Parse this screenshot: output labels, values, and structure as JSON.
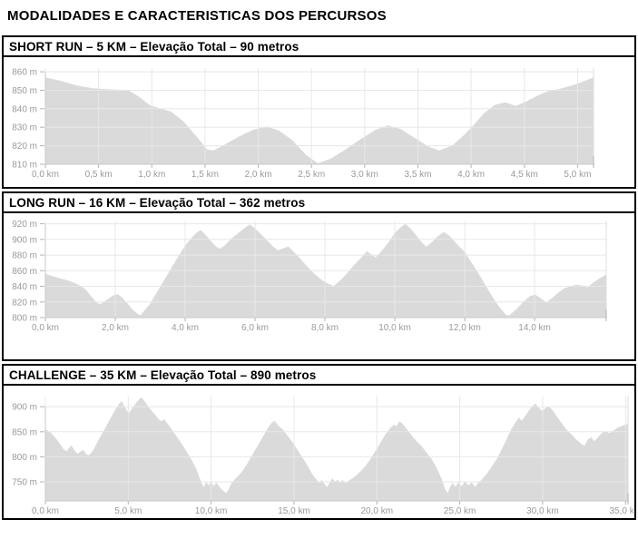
{
  "title": "MODALIDADES E CARACTERISTICAS DOS PERCURSOS",
  "colors": {
    "area_fill": "#dadada",
    "grid_line": "#e8e8e8",
    "end_line": "#dcdcdc",
    "axis_line": "#c9c9c9",
    "tick_mark": "#b5b5b5",
    "axis_text": "#9a9a9a",
    "border": "#000000"
  },
  "chart_data": [
    {
      "type": "area",
      "title": "SHORT RUN – 5 KM – Elevação Total – 90 metros",
      "xlabel": "km",
      "ylabel": "m",
      "xlim": [
        0,
        5.15
      ],
      "ylim": [
        810,
        862
      ],
      "x_ticks": [
        0,
        0.5,
        1,
        1.5,
        2,
        2.5,
        3,
        3.5,
        4,
        4.5,
        5
      ],
      "x_tick_labels": [
        "0,0 km",
        "0,5 km",
        "1,0 km",
        "1,5 km",
        "2,0 km",
        "2,5 km",
        "3,0 km",
        "3,5 km",
        "4,0 km",
        "4,5 km",
        "5,0 km"
      ],
      "y_ticks": [
        860,
        850,
        840,
        830,
        820,
        810
      ],
      "y_tick_labels": [
        "860 m",
        "850 m",
        "840 m",
        "830 m",
        "820 m",
        "810 m"
      ],
      "points": [
        [
          0,
          857
        ],
        [
          0.15,
          855
        ],
        [
          0.3,
          852.5
        ],
        [
          0.45,
          851
        ],
        [
          0.6,
          850.5
        ],
        [
          0.78,
          850
        ],
        [
          0.88,
          846.5
        ],
        [
          0.98,
          842
        ],
        [
          1.08,
          840
        ],
        [
          1.18,
          838.5
        ],
        [
          1.3,
          833
        ],
        [
          1.42,
          825
        ],
        [
          1.52,
          818
        ],
        [
          1.58,
          817.5
        ],
        [
          1.68,
          820.5
        ],
        [
          1.82,
          825
        ],
        [
          1.95,
          828.5
        ],
        [
          2.08,
          830.5
        ],
        [
          2.2,
          828
        ],
        [
          2.32,
          823
        ],
        [
          2.45,
          815
        ],
        [
          2.56,
          810.5
        ],
        [
          2.68,
          813
        ],
        [
          2.82,
          818
        ],
        [
          2.96,
          823.5
        ],
        [
          3.1,
          828.5
        ],
        [
          3.22,
          831
        ],
        [
          3.34,
          829
        ],
        [
          3.46,
          824.5
        ],
        [
          3.6,
          819.5
        ],
        [
          3.7,
          817.5
        ],
        [
          3.82,
          820
        ],
        [
          3.92,
          825
        ],
        [
          4.02,
          831
        ],
        [
          4.12,
          837.5
        ],
        [
          4.22,
          842
        ],
        [
          4.32,
          843.5
        ],
        [
          4.42,
          841.5
        ],
        [
          4.52,
          844
        ],
        [
          4.62,
          847
        ],
        [
          4.72,
          849.5
        ],
        [
          4.85,
          851
        ],
        [
          5,
          853.5
        ],
        [
          5.15,
          857
        ]
      ]
    },
    {
      "type": "area",
      "title": "LONG RUN – 16 KM – Elevação Total – 362 metros",
      "xlabel": "km",
      "ylabel": "m",
      "xlim": [
        0,
        16.05
      ],
      "ylim": [
        800,
        923
      ],
      "x_ticks": [
        0,
        2,
        4,
        6,
        8,
        10,
        12,
        14
      ],
      "x_tick_labels": [
        "0,0 km",
        "2,0 km",
        "4,0 km",
        "6,0 km",
        "8,0 km",
        "10,0 km",
        "12,0 km",
        "14,0 km"
      ],
      "y_ticks": [
        920,
        900,
        880,
        860,
        840,
        820,
        800
      ],
      "y_tick_labels": [
        "920 m",
        "900 m",
        "880 m",
        "860 m",
        "840 m",
        "820 m",
        "800 m"
      ],
      "points": [
        [
          0,
          856
        ],
        [
          0.2,
          853
        ],
        [
          0.4,
          850.5
        ],
        [
          0.6,
          848
        ],
        [
          0.8,
          845
        ],
        [
          1,
          841
        ],
        [
          1.15,
          836
        ],
        [
          1.3,
          828
        ],
        [
          1.45,
          820
        ],
        [
          1.55,
          817
        ],
        [
          1.65,
          819.5
        ],
        [
          1.8,
          824
        ],
        [
          1.95,
          828.5
        ],
        [
          2.07,
          830
        ],
        [
          2.2,
          825.5
        ],
        [
          2.35,
          818
        ],
        [
          2.5,
          810
        ],
        [
          2.65,
          804.5
        ],
        [
          2.73,
          803
        ],
        [
          2.85,
          810
        ],
        [
          3,
          818
        ],
        [
          3.2,
          833
        ],
        [
          3.4,
          848
        ],
        [
          3.6,
          863
        ],
        [
          3.8,
          878
        ],
        [
          4,
          892
        ],
        [
          4.2,
          903
        ],
        [
          4.35,
          909.5
        ],
        [
          4.45,
          912
        ],
        [
          4.58,
          906
        ],
        [
          4.72,
          899
        ],
        [
          4.88,
          891
        ],
        [
          5,
          888
        ],
        [
          5.15,
          893
        ],
        [
          5.3,
          900
        ],
        [
          5.5,
          907.5
        ],
        [
          5.7,
          914.5
        ],
        [
          5.85,
          919
        ],
        [
          6,
          914
        ],
        [
          6.15,
          907.5
        ],
        [
          6.3,
          901
        ],
        [
          6.5,
          891.5
        ],
        [
          6.65,
          886
        ],
        [
          6.8,
          888.5
        ],
        [
          6.95,
          891
        ],
        [
          7.1,
          884.5
        ],
        [
          7.3,
          875
        ],
        [
          7.5,
          865
        ],
        [
          7.7,
          856
        ],
        [
          7.9,
          848.5
        ],
        [
          8.1,
          843
        ],
        [
          8.25,
          840.5
        ],
        [
          8.45,
          848
        ],
        [
          8.65,
          857.5
        ],
        [
          8.85,
          868
        ],
        [
          9.05,
          877.5
        ],
        [
          9.2,
          885
        ],
        [
          9.32,
          881
        ],
        [
          9.45,
          877
        ],
        [
          9.6,
          884
        ],
        [
          9.8,
          895
        ],
        [
          10,
          908
        ],
        [
          10.18,
          916
        ],
        [
          10.3,
          920
        ],
        [
          10.45,
          914
        ],
        [
          10.6,
          906
        ],
        [
          10.75,
          897.5
        ],
        [
          10.9,
          890.5
        ],
        [
          11.05,
          896
        ],
        [
          11.2,
          903
        ],
        [
          11.4,
          909.5
        ],
        [
          11.55,
          905
        ],
        [
          11.7,
          898
        ],
        [
          11.85,
          890.5
        ],
        [
          12,
          884
        ],
        [
          12.2,
          870
        ],
        [
          12.4,
          856
        ],
        [
          12.6,
          841
        ],
        [
          12.8,
          826
        ],
        [
          13,
          813
        ],
        [
          13.17,
          804
        ],
        [
          13.27,
          802.5
        ],
        [
          13.42,
          808.5
        ],
        [
          13.57,
          815
        ],
        [
          13.72,
          822
        ],
        [
          13.88,
          827.5
        ],
        [
          14.02,
          829.5
        ],
        [
          14.18,
          824.5
        ],
        [
          14.33,
          819.5
        ],
        [
          14.5,
          825
        ],
        [
          14.68,
          832
        ],
        [
          14.85,
          837.5
        ],
        [
          15.05,
          840.5
        ],
        [
          15.2,
          842
        ],
        [
          15.38,
          841
        ],
        [
          15.52,
          838.5
        ],
        [
          15.68,
          845
        ],
        [
          15.85,
          850
        ],
        [
          16.05,
          855
        ]
      ]
    },
    {
      "type": "area",
      "title": "CHALLENGE – 35 KM – Elevação Total – 890 metros",
      "xlabel": "km",
      "ylabel": "m",
      "xlim": [
        0,
        35.15
      ],
      "ylim": [
        712,
        922
      ],
      "x_ticks": [
        0,
        5,
        10,
        15,
        20,
        25,
        30,
        35
      ],
      "x_tick_labels": [
        "0,0 km",
        "5,0 km",
        "10,0 km",
        "15,0 km",
        "20,0 km",
        "25,0 km",
        "30,0 km",
        "35,0 km"
      ],
      "y_ticks": [
        900,
        850,
        800,
        750
      ],
      "y_tick_labels": [
        "900 m",
        "850 m",
        "800 m",
        "750 m"
      ],
      "points": [
        [
          0,
          855
        ],
        [
          0.3,
          849
        ],
        [
          0.6,
          838
        ],
        [
          0.9,
          825
        ],
        [
          1.1,
          815
        ],
        [
          1.27,
          811
        ],
        [
          1.42,
          817
        ],
        [
          1.57,
          823
        ],
        [
          1.75,
          813
        ],
        [
          1.95,
          806
        ],
        [
          2.12,
          810.5
        ],
        [
          2.27,
          814
        ],
        [
          2.45,
          806
        ],
        [
          2.62,
          803
        ],
        [
          2.82,
          810
        ],
        [
          3.02,
          822
        ],
        [
          3.32,
          840
        ],
        [
          3.62,
          858
        ],
        [
          3.92,
          876
        ],
        [
          4.22,
          894
        ],
        [
          4.45,
          906
        ],
        [
          4.6,
          911
        ],
        [
          4.77,
          901
        ],
        [
          4.92,
          891.5
        ],
        [
          5.07,
          888
        ],
        [
          5.22,
          896
        ],
        [
          5.42,
          905
        ],
        [
          5.62,
          913
        ],
        [
          5.8,
          919
        ],
        [
          6,
          910
        ],
        [
          6.2,
          901
        ],
        [
          6.4,
          892
        ],
        [
          6.6,
          885
        ],
        [
          6.8,
          876
        ],
        [
          7,
          871
        ],
        [
          7.17,
          875
        ],
        [
          7.37,
          866
        ],
        [
          7.62,
          855
        ],
        [
          7.87,
          843
        ],
        [
          8.12,
          831
        ],
        [
          8.37,
          818
        ],
        [
          8.62,
          805
        ],
        [
          8.87,
          791
        ],
        [
          9.1,
          776
        ],
        [
          9.3,
          758
        ],
        [
          9.45,
          746
        ],
        [
          9.57,
          740
        ],
        [
          9.7,
          750
        ],
        [
          9.85,
          743
        ],
        [
          10,
          751
        ],
        [
          10.15,
          741
        ],
        [
          10.3,
          749
        ],
        [
          10.5,
          740
        ],
        [
          10.7,
          733
        ],
        [
          10.9,
          728
        ],
        [
          11.05,
          734
        ],
        [
          11.2,
          746
        ],
        [
          11.42,
          755
        ],
        [
          11.62,
          761
        ],
        [
          11.85,
          770
        ],
        [
          12.12,
          783
        ],
        [
          12.42,
          800
        ],
        [
          12.72,
          817
        ],
        [
          13.02,
          834
        ],
        [
          13.32,
          852
        ],
        [
          13.6,
          866
        ],
        [
          13.8,
          872
        ],
        [
          13.97,
          866
        ],
        [
          14.12,
          859.5
        ],
        [
          14.32,
          855
        ],
        [
          14.52,
          846
        ],
        [
          14.82,
          833
        ],
        [
          15.12,
          818
        ],
        [
          15.42,
          803
        ],
        [
          15.72,
          788
        ],
        [
          16.02,
          770
        ],
        [
          16.22,
          760
        ],
        [
          16.37,
          754
        ],
        [
          16.52,
          748
        ],
        [
          16.67,
          754
        ],
        [
          16.87,
          744
        ],
        [
          17.02,
          740
        ],
        [
          17.17,
          750
        ],
        [
          17.32,
          757
        ],
        [
          17.47,
          750
        ],
        [
          17.62,
          755
        ],
        [
          17.77,
          748
        ],
        [
          17.92,
          754
        ],
        [
          18.12,
          747
        ],
        [
          18.32,
          753
        ],
        [
          18.52,
          757
        ],
        [
          18.77,
          763
        ],
        [
          19.02,
          771
        ],
        [
          19.32,
          782
        ],
        [
          19.62,
          796
        ],
        [
          19.92,
          812
        ],
        [
          20.22,
          828
        ],
        [
          20.52,
          845
        ],
        [
          20.82,
          858
        ],
        [
          21.02,
          864
        ],
        [
          21.17,
          861
        ],
        [
          21.37,
          871
        ],
        [
          21.57,
          865
        ],
        [
          21.82,
          855
        ],
        [
          22.12,
          842
        ],
        [
          22.42,
          830
        ],
        [
          22.72,
          820
        ],
        [
          23.02,
          807
        ],
        [
          23.32,
          795
        ],
        [
          23.62,
          777
        ],
        [
          23.92,
          755
        ],
        [
          24.12,
          735
        ],
        [
          24.27,
          728
        ],
        [
          24.42,
          740
        ],
        [
          24.57,
          748
        ],
        [
          24.72,
          740
        ],
        [
          24.92,
          749
        ],
        [
          25.12,
          741
        ],
        [
          25.32,
          751
        ],
        [
          25.52,
          743
        ],
        [
          25.72,
          749
        ],
        [
          25.92,
          740
        ],
        [
          26.12,
          748
        ],
        [
          26.37,
          756
        ],
        [
          26.62,
          766
        ],
        [
          26.92,
          780
        ],
        [
          27.22,
          795
        ],
        [
          27.52,
          814
        ],
        [
          27.82,
          835
        ],
        [
          28.12,
          856
        ],
        [
          28.37,
          869
        ],
        [
          28.57,
          879
        ],
        [
          28.72,
          872
        ],
        [
          28.92,
          880
        ],
        [
          29.12,
          890
        ],
        [
          29.37,
          901
        ],
        [
          29.57,
          906
        ],
        [
          29.77,
          898
        ],
        [
          29.97,
          891
        ],
        [
          30.17,
          897
        ],
        [
          30.37,
          901
        ],
        [
          30.62,
          892
        ],
        [
          30.87,
          880
        ],
        [
          31.12,
          868
        ],
        [
          31.42,
          855
        ],
        [
          31.72,
          845
        ],
        [
          32.02,
          835
        ],
        [
          32.32,
          826
        ],
        [
          32.52,
          822
        ],
        [
          32.72,
          834
        ],
        [
          32.92,
          839
        ],
        [
          33.12,
          831
        ],
        [
          33.32,
          838
        ],
        [
          33.57,
          847
        ],
        [
          33.82,
          852
        ],
        [
          34.02,
          847
        ],
        [
          34.22,
          851
        ],
        [
          34.52,
          858
        ],
        [
          34.82,
          862
        ],
        [
          35.15,
          866
        ]
      ]
    }
  ]
}
